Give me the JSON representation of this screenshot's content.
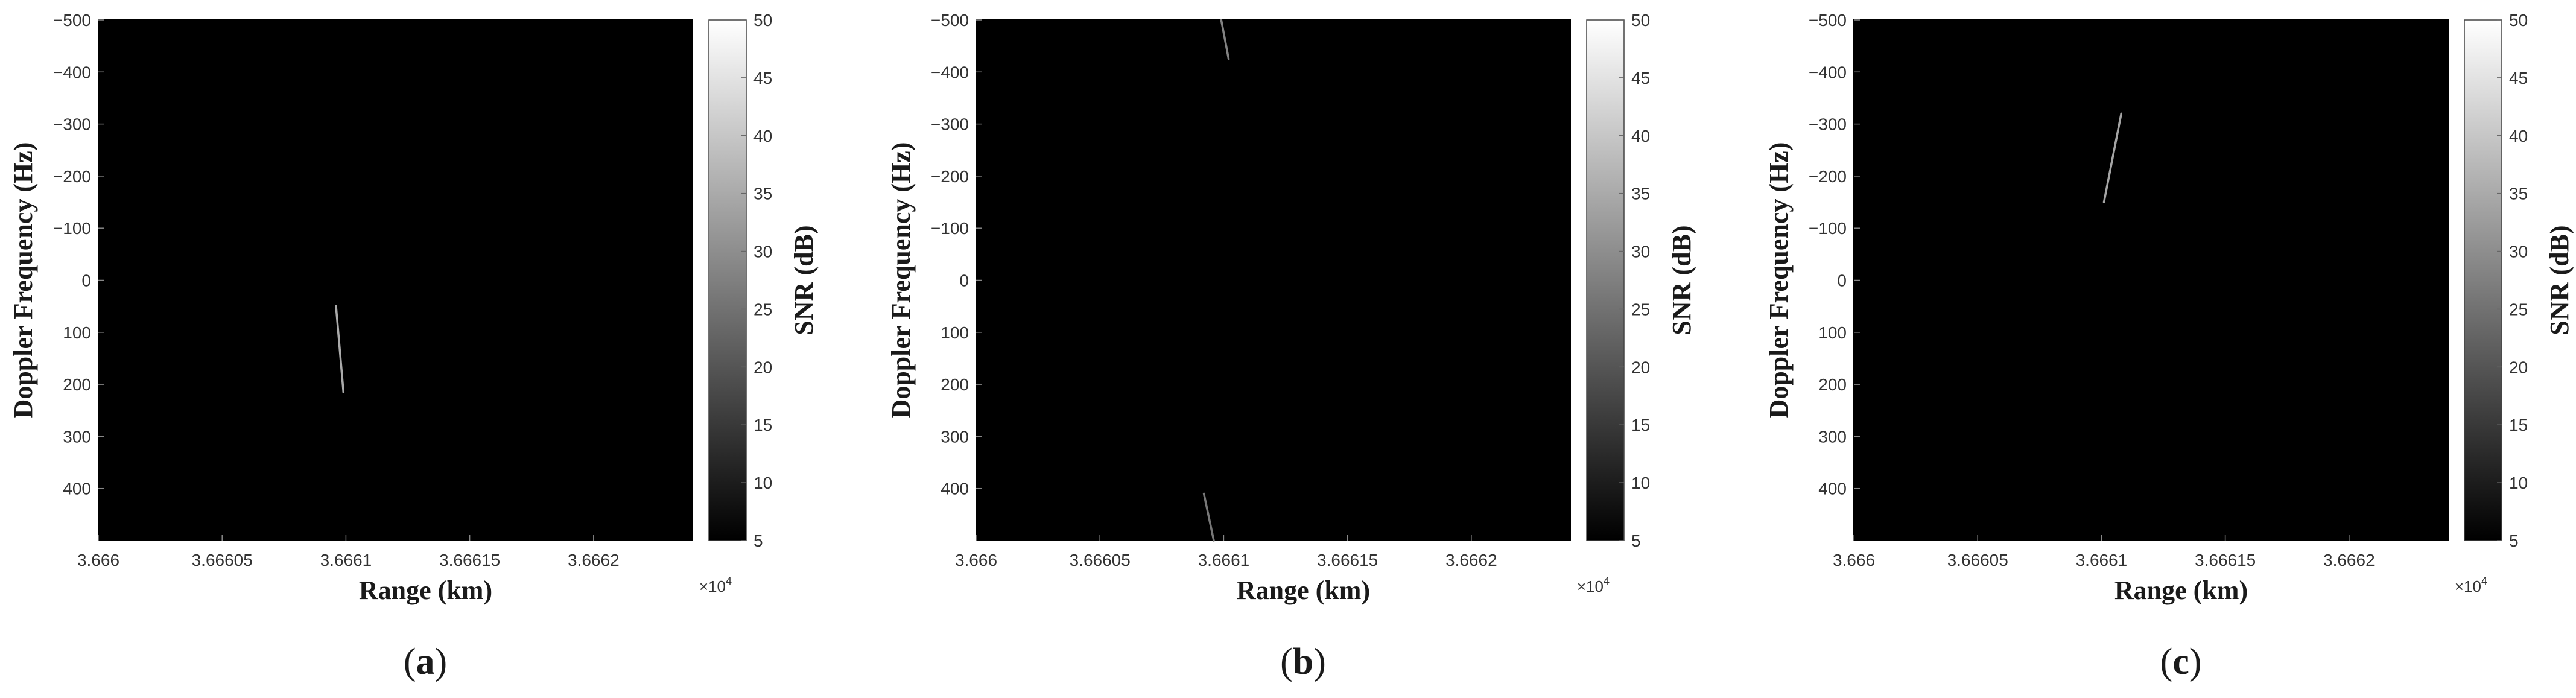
{
  "chart_data": [
    {
      "type": "heatmap",
      "panel_label": "a",
      "xlabel": "Range (km)",
      "ylabel": "Doppler Frequency (Hz)",
      "colorbar_label": "SNR (dB)",
      "xlim": [
        36660,
        36662.4
      ],
      "x_display_scale": 10000,
      "x_exponent_label": "×10",
      "x_exponent_power": "4",
      "x_ticks": [
        "3.666",
        "3.66605",
        "3.6661",
        "3.66615",
        "3.6662"
      ],
      "ylim": [
        -500,
        500
      ],
      "y_ticks": [
        "-500",
        "-400",
        "-300",
        "-200",
        "-100",
        "0",
        "100",
        "200",
        "300",
        "400"
      ],
      "clim": [
        5,
        50
      ],
      "colorbar_ticks": [
        "5",
        "10",
        "15",
        "20",
        "25",
        "30",
        "35",
        "40",
        "45",
        "50"
      ],
      "background_snr_db": 5,
      "tracks": [
        {
          "points": [
            [
              36660.96,
              50
            ],
            [
              36660.99,
              215
            ]
          ],
          "snr_db": 35
        }
      ]
    },
    {
      "type": "heatmap",
      "panel_label": "b",
      "xlabel": "Range (km)",
      "ylabel": "Doppler Frequency (Hz)",
      "colorbar_label": "SNR (dB)",
      "xlim": [
        36660,
        36662.4
      ],
      "x_display_scale": 10000,
      "x_exponent_label": "×10",
      "x_exponent_power": "4",
      "x_ticks": [
        "3.666",
        "3.66605",
        "3.6661",
        "3.66615",
        "3.6662"
      ],
      "ylim": [
        -500,
        500
      ],
      "y_ticks": [
        "-500",
        "-400",
        "-300",
        "-200",
        "-100",
        "0",
        "100",
        "200",
        "300",
        "400"
      ],
      "clim": [
        5,
        50
      ],
      "colorbar_ticks": [
        "5",
        "10",
        "15",
        "20",
        "25",
        "30",
        "35",
        "40",
        "45",
        "50"
      ],
      "background_snr_db": 5,
      "tracks": [
        {
          "points": [
            [
              36660.99,
              -500
            ],
            [
              36661.02,
              -425
            ]
          ],
          "snr_db": 28
        },
        {
          "points": [
            [
              36660.92,
              410
            ],
            [
              36660.96,
              500
            ]
          ],
          "snr_db": 26
        }
      ]
    },
    {
      "type": "heatmap",
      "panel_label": "c",
      "xlabel": "Range (km)",
      "ylabel": "Doppler Frequency (Hz)",
      "colorbar_label": "SNR (dB)",
      "xlim": [
        36660,
        36662.4
      ],
      "x_display_scale": 10000,
      "x_exponent_label": "×10",
      "x_exponent_power": "4",
      "x_ticks": [
        "3.666",
        "3.66605",
        "3.6661",
        "3.66615",
        "3.6662"
      ],
      "ylim": [
        -500,
        500
      ],
      "y_ticks": [
        "-500",
        "-400",
        "-300",
        "-200",
        "-100",
        "0",
        "100",
        "200",
        "300",
        "400"
      ],
      "clim": [
        5,
        50
      ],
      "colorbar_ticks": [
        "5",
        "10",
        "15",
        "20",
        "25",
        "30",
        "35",
        "40",
        "45",
        "50"
      ],
      "background_snr_db": 5,
      "tracks": [
        {
          "points": [
            [
              36661.08,
              -320
            ],
            [
              36661.01,
              -150
            ]
          ],
          "snr_db": 34
        }
      ]
    }
  ]
}
